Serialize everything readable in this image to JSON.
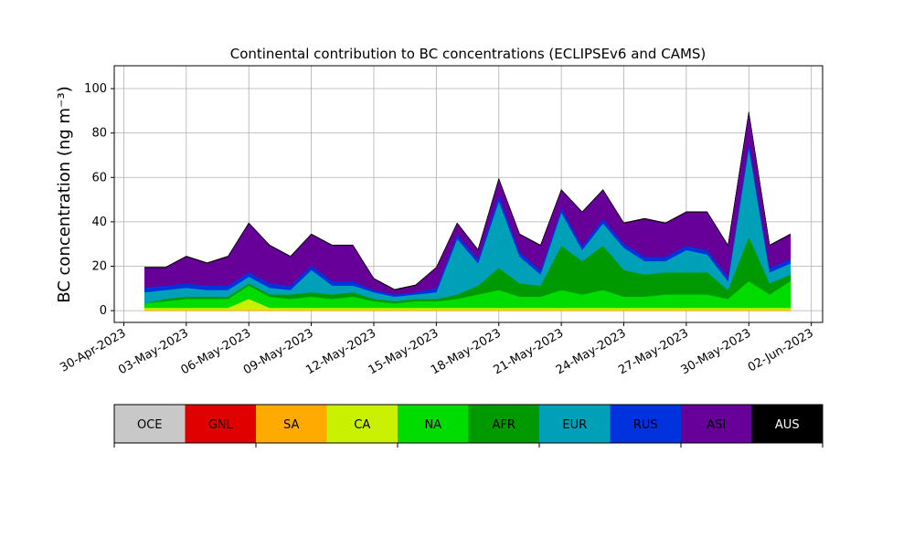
{
  "chart_data": {
    "type": "stacked-area",
    "title": "Continental contribution to BC concentrations (ECLIPSEv6 and CAMS)",
    "y_label": "BC concentration (ng m⁻³)",
    "x": [
      "2023-05-01",
      "2023-05-02",
      "2023-05-03",
      "2023-05-04",
      "2023-05-05",
      "2023-05-06",
      "2023-05-07",
      "2023-05-08",
      "2023-05-09",
      "2023-05-10",
      "2023-05-11",
      "2023-05-12",
      "2023-05-13",
      "2023-05-14",
      "2023-05-15",
      "2023-05-16",
      "2023-05-17",
      "2023-05-18",
      "2023-05-19",
      "2023-05-20",
      "2023-05-21",
      "2023-05-22",
      "2023-05-23",
      "2023-05-24",
      "2023-05-25",
      "2023-05-26",
      "2023-05-27",
      "2023-05-28",
      "2023-05-29",
      "2023-05-30",
      "2023-05-31",
      "2023-06-01"
    ],
    "xlim": [
      "2023-04-29T13:00",
      "2023-06-02T13:00"
    ],
    "xticks": [
      {
        "value": "2023-04-30",
        "label": "30-Apr-2023"
      },
      {
        "value": "2023-05-03",
        "label": "03-May-2023"
      },
      {
        "value": "2023-05-06",
        "label": "06-May-2023"
      },
      {
        "value": "2023-05-09",
        "label": "09-May-2023"
      },
      {
        "value": "2023-05-12",
        "label": "12-May-2023"
      },
      {
        "value": "2023-05-15",
        "label": "15-May-2023"
      },
      {
        "value": "2023-05-18",
        "label": "18-May-2023"
      },
      {
        "value": "2023-05-21",
        "label": "21-May-2023"
      },
      {
        "value": "2023-05-24",
        "label": "24-May-2023"
      },
      {
        "value": "2023-05-27",
        "label": "27-May-2023"
      },
      {
        "value": "2023-05-30",
        "label": "30-May-2023"
      },
      {
        "value": "2023-06-02",
        "label": "02-Jun-2023"
      }
    ],
    "ylim": [
      -5.3,
      110.3
    ],
    "yticks": [
      0,
      20,
      40,
      60,
      80,
      100
    ],
    "grid": true,
    "series": [
      {
        "name": "OCE",
        "color": "#c8c8c8",
        "values": [
          0,
          0,
          0,
          0,
          0,
          0,
          0,
          0,
          0,
          0,
          0,
          0,
          0,
          0,
          0,
          0,
          0,
          0,
          0,
          0,
          0,
          0,
          0,
          0,
          0,
          0,
          0,
          0,
          0,
          0,
          0,
          0
        ]
      },
      {
        "name": "GNL",
        "color": "#e00000",
        "values": [
          0,
          0,
          0,
          0,
          0,
          0,
          0,
          0,
          0,
          0,
          0,
          0,
          0,
          0,
          0,
          0,
          0,
          0,
          0,
          0,
          0,
          0,
          0,
          0,
          0,
          0,
          0,
          0,
          0,
          0,
          0,
          0
        ]
      },
      {
        "name": "SA",
        "color": "#ffaa00",
        "values": [
          0.3,
          0.3,
          0.3,
          0.3,
          0.3,
          0.3,
          0.3,
          0.3,
          0.3,
          0.3,
          0.3,
          0.3,
          0.3,
          0.3,
          0.3,
          0.3,
          0.3,
          0.3,
          0.3,
          0.3,
          0.3,
          0.3,
          0.3,
          0.3,
          0.3,
          0.3,
          0.3,
          0.3,
          0.3,
          0.3,
          0.3,
          0.3
        ]
      },
      {
        "name": "CA",
        "color": "#c8f000",
        "values": [
          1,
          1,
          1,
          1,
          1,
          5,
          1,
          1,
          1,
          1,
          1,
          1,
          1,
          1,
          1,
          1,
          1,
          1,
          1,
          1,
          1,
          1,
          1,
          1,
          1,
          1,
          1,
          1,
          1,
          1,
          1,
          1
        ]
      },
      {
        "name": "NA",
        "color": "#00dc00",
        "values": [
          2,
          3,
          4,
          4,
          4,
          6,
          5,
          4,
          5,
          4,
          5,
          3,
          2,
          3,
          3,
          4,
          6,
          8,
          5,
          5,
          8,
          6,
          8,
          5,
          5,
          6,
          6,
          6,
          4,
          12,
          6,
          12
        ]
      },
      {
        "name": "AFR",
        "color": "#009900",
        "values": [
          0,
          1,
          1,
          1,
          1,
          1,
          1,
          2,
          2,
          2,
          2,
          1,
          1,
          1,
          1,
          2,
          4,
          10,
          6,
          5,
          20,
          15,
          20,
          12,
          10,
          10,
          10,
          10,
          4,
          20,
          5,
          3
        ]
      },
      {
        "name": "EUR",
        "color": "#00a0b8",
        "values": [
          5,
          4,
          4,
          3,
          3,
          3,
          3,
          2,
          10,
          4,
          3,
          3,
          2,
          2,
          3,
          25,
          10,
          30,
          12,
          5,
          15,
          5,
          10,
          10,
          6,
          5,
          10,
          8,
          4,
          40,
          5,
          5
        ]
      },
      {
        "name": "RUS",
        "color": "#0033dd",
        "values": [
          2,
          2,
          2,
          2,
          2,
          2,
          2,
          2,
          2,
          2,
          2,
          1,
          1,
          1,
          2,
          2,
          2,
          3,
          2,
          2,
          2,
          2,
          2,
          2,
          2,
          2,
          2,
          2,
          2,
          3,
          2,
          2
        ]
      },
      {
        "name": "ASI",
        "color": "#660099",
        "values": [
          9,
          8,
          12,
          10,
          13,
          22,
          17,
          13,
          14,
          16,
          16,
          5,
          2,
          3,
          9,
          5,
          4,
          7,
          8,
          11,
          8,
          15,
          13,
          9,
          17,
          15,
          15,
          17,
          14,
          13,
          10,
          11
        ]
      },
      {
        "name": "AUS",
        "color": "#000000",
        "values": [
          0.3,
          0.3,
          0.3,
          0.3,
          0.3,
          0.3,
          0.3,
          0.3,
          0.3,
          0.3,
          0.3,
          0.3,
          0.3,
          0.3,
          0.3,
          0.3,
          0.3,
          0.3,
          0.3,
          0.3,
          0.3,
          0.3,
          0.3,
          0.3,
          0.3,
          0.3,
          0.3,
          0.3,
          0.3,
          0.3,
          0.3,
          0.3
        ]
      }
    ]
  }
}
